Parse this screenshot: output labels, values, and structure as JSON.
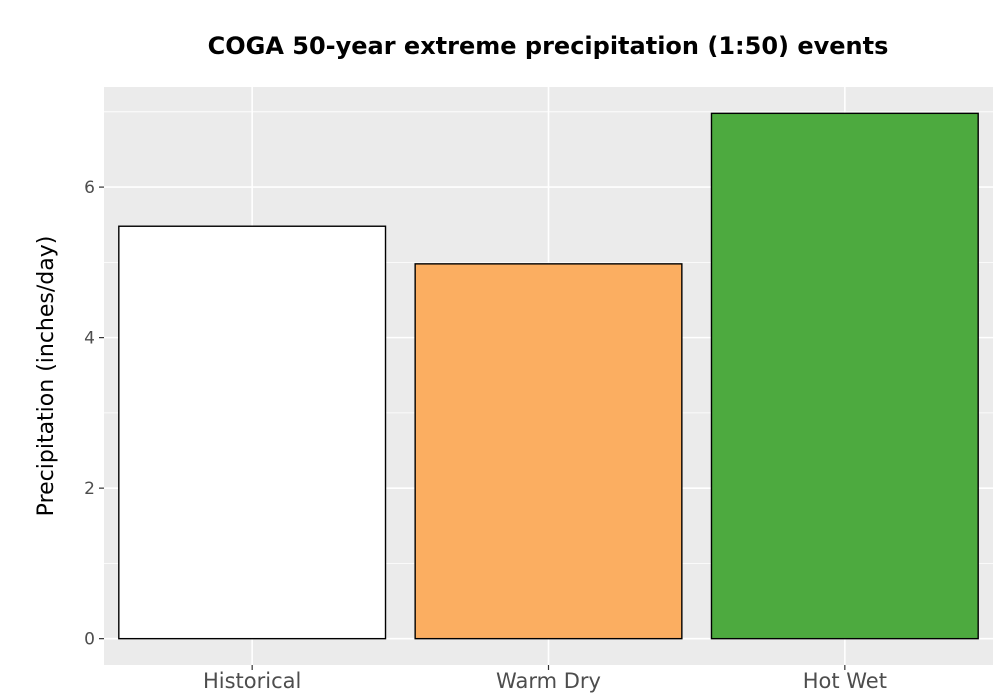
{
  "chart_data": {
    "type": "bar",
    "title": "COGA 50-year extreme precipitation (1:50) events",
    "xlabel": "",
    "ylabel": "Precipitation (inches/day)",
    "categories": [
      "Historical",
      "Warm Dry",
      "Hot Wet"
    ],
    "values": [
      5.48,
      4.98,
      6.98
    ],
    "bar_colors": [
      "#ffffff",
      "#fbae61",
      "#4daa3f"
    ],
    "bar_outline_color": "#000000",
    "panel_background": "#ebebeb",
    "grid_color": "#ffffff",
    "grid": true,
    "legend": "none",
    "ylim": [
      -0.35,
      7.33
    ],
    "yticks": [
      0,
      2,
      4,
      6
    ],
    "ytick_labels": [
      "0",
      "2",
      "4",
      "6"
    ]
  }
}
